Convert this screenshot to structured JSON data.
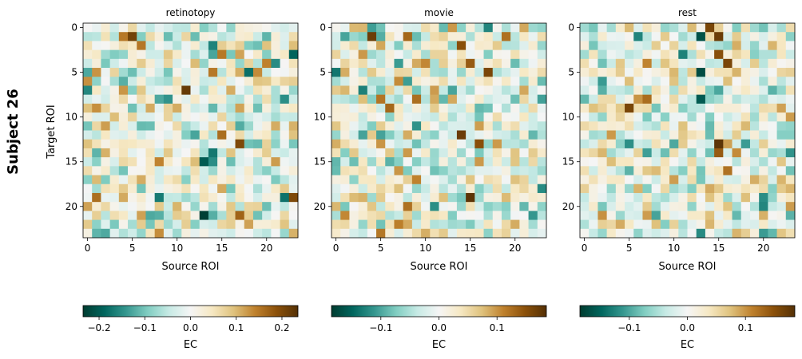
{
  "figure": {
    "row_label": "Subject 26",
    "ylabel": "Target ROI",
    "xlabel": "Source ROI",
    "colorbar_label": "EC",
    "tick_labels": [
      "0",
      "5",
      "10",
      "15",
      "20"
    ]
  },
  "colors": {
    "cmap": "BrBG_reversed",
    "neg_dark": "#00463c",
    "neutral": "#f5f5f5",
    "pos_dark": "#6a3c04"
  },
  "chart_data": [
    {
      "type": "heatmap",
      "title": "retinotopy",
      "xlabel": "Source ROI",
      "ylabel": "Target ROI",
      "n": 24,
      "seed": 26,
      "vlim": [
        -0.235,
        0.235
      ],
      "colorbar_ticks": [
        -0.2,
        -0.1,
        0.0,
        0.1,
        0.2
      ],
      "colorbar_tick_labels": [
        "−0.2",
        "−0.1",
        "0.0",
        "0.1",
        "0.2"
      ],
      "colorbar_label": "EC",
      "strong_cells": [
        {
          "row": 1,
          "col": 5,
          "value": 0.21
        },
        {
          "row": 3,
          "col": 23,
          "value": -0.19
        },
        {
          "row": 7,
          "col": 11,
          "value": 0.22
        },
        {
          "row": 8,
          "col": 22,
          "value": -0.15
        },
        {
          "row": 12,
          "col": 15,
          "value": 0.16
        },
        {
          "row": 13,
          "col": 17,
          "value": 0.2
        },
        {
          "row": 15,
          "col": 13,
          "value": -0.2
        },
        {
          "row": 19,
          "col": 23,
          "value": 0.2
        },
        {
          "row": 21,
          "col": 13,
          "value": -0.23
        },
        {
          "row": 21,
          "col": 17,
          "value": 0.17
        }
      ]
    },
    {
      "type": "heatmap",
      "title": "movie",
      "xlabel": "Source ROI",
      "ylabel": "",
      "n": 24,
      "seed": 57,
      "vlim": [
        -0.185,
        0.185
      ],
      "colorbar_ticks": [
        -0.1,
        0.0,
        0.1
      ],
      "colorbar_tick_labels": [
        "−0.1",
        "0.0",
        "0.1"
      ],
      "colorbar_label": "EC",
      "strong_cells": [
        {
          "row": 1,
          "col": 4,
          "value": 0.17
        },
        {
          "row": 2,
          "col": 14,
          "value": 0.15
        },
        {
          "row": 4,
          "col": 15,
          "value": 0.14
        },
        {
          "row": 5,
          "col": 17,
          "value": 0.16
        },
        {
          "row": 8,
          "col": 5,
          "value": 0.12
        },
        {
          "row": 9,
          "col": 6,
          "value": 0.13
        },
        {
          "row": 12,
          "col": 14,
          "value": 0.17
        },
        {
          "row": 13,
          "col": 16,
          "value": 0.15
        },
        {
          "row": 19,
          "col": 15,
          "value": 0.18
        }
      ]
    },
    {
      "type": "heatmap",
      "title": "rest",
      "xlabel": "Source ROI",
      "ylabel": "",
      "n": 24,
      "seed": 91,
      "vlim": [
        -0.185,
        0.185
      ],
      "colorbar_ticks": [
        -0.1,
        0.0,
        0.1
      ],
      "colorbar_tick_labels": [
        "−0.1",
        "0.0",
        "0.1"
      ],
      "colorbar_label": "EC",
      "strong_cells": [
        {
          "row": 0,
          "col": 14,
          "value": 0.16
        },
        {
          "row": 1,
          "col": 15,
          "value": 0.17
        },
        {
          "row": 3,
          "col": 15,
          "value": 0.15
        },
        {
          "row": 4,
          "col": 16,
          "value": 0.16
        },
        {
          "row": 5,
          "col": 13,
          "value": -0.17
        },
        {
          "row": 9,
          "col": 5,
          "value": 0.16
        },
        {
          "row": 13,
          "col": 15,
          "value": 0.18
        },
        {
          "row": 14,
          "col": 15,
          "value": 0.14
        }
      ]
    }
  ]
}
